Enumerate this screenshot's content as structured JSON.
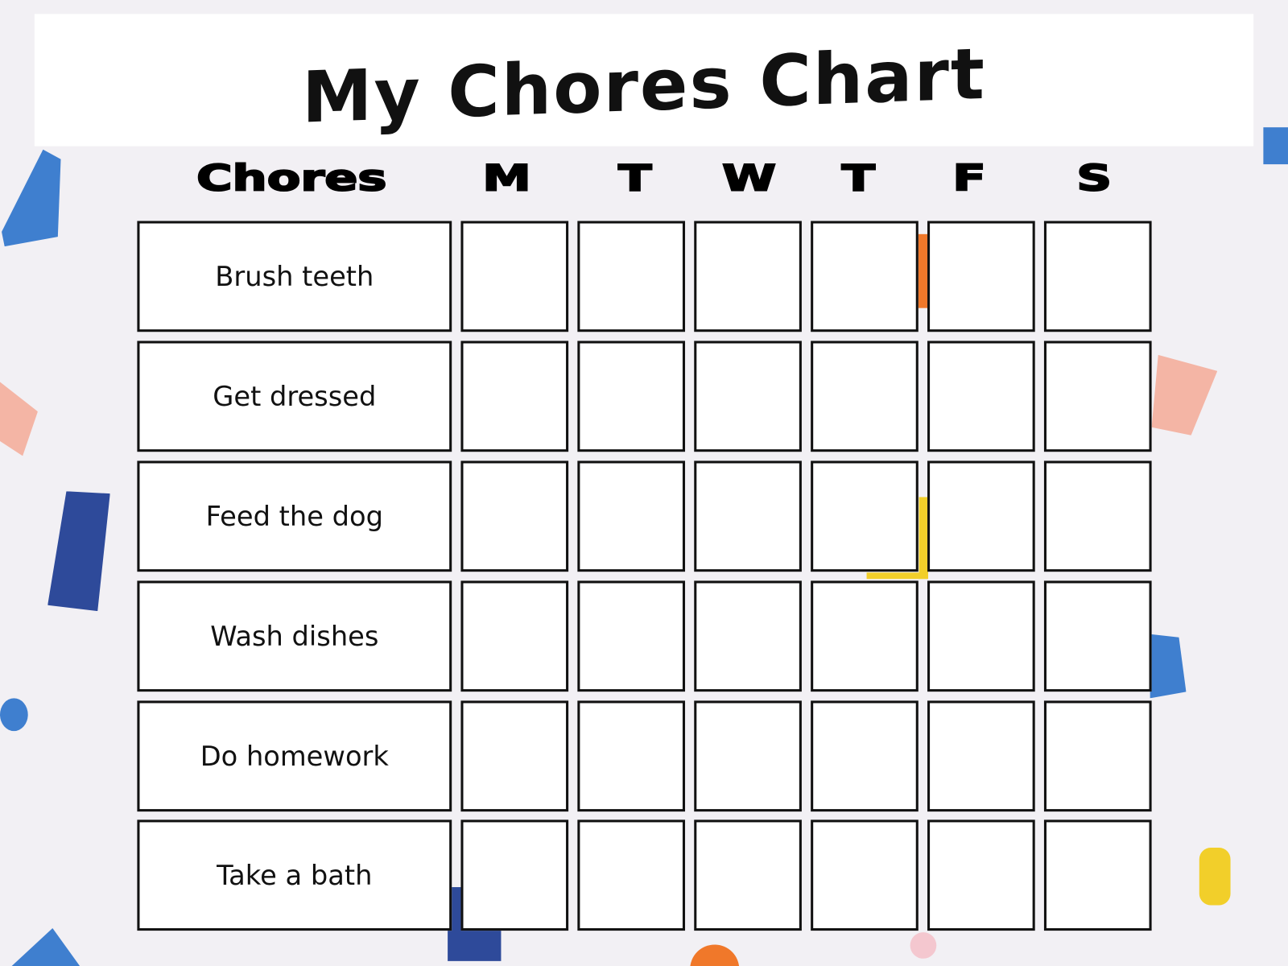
{
  "title": "My Chores Chart",
  "columns": {
    "chores": "Chores",
    "days": [
      "M",
      "T",
      "W",
      "T",
      "F",
      "S"
    ]
  },
  "chores": [
    "Brush teeth",
    "Get dressed",
    "Feed the dog",
    "Wash dishes",
    "Do homework",
    "Take a bath"
  ],
  "colors": {
    "background": "#f2f0f4",
    "blue": "#3f7fcf",
    "navy": "#2e4a9a",
    "pink": "#f4b5a5",
    "yellow": "#f2cf2a",
    "orange": "#f0782a"
  }
}
